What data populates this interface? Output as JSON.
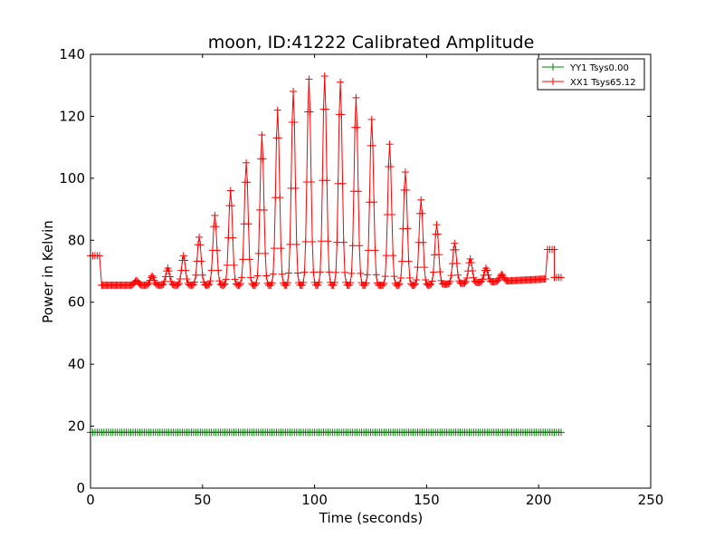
{
  "chart_data": {
    "type": "line",
    "title": "moon, ID:41222 Calibrated Amplitude",
    "xlabel": "Time (seconds)",
    "ylabel": "Power in Kelvin",
    "xlim": [
      0,
      250
    ],
    "ylim": [
      0,
      140
    ],
    "xticks": [
      0,
      50,
      100,
      150,
      200,
      250
    ],
    "yticks": [
      0,
      20,
      40,
      60,
      80,
      100,
      120,
      140
    ],
    "grid": false,
    "legend_position": "top-right",
    "legend": [
      {
        "label": "YY1 Tsys0.00",
        "color": "#008000"
      },
      {
        "label": "XX1 Tsys65.12",
        "color": "#ff0000"
      }
    ],
    "series": [
      {
        "name": "YY1 Tsys0.00",
        "color": "#008000",
        "marker": "+",
        "baseline": 18,
        "xmin": 0,
        "xmax": 210,
        "step": 1
      },
      {
        "name": "XX1 Tsys65.12",
        "color": "#ff0000",
        "marker": "+",
        "start_segment": {
          "x": [
            0,
            4
          ],
          "y": 75
        },
        "baseline_left": 65.5,
        "baseline_right": 67.5,
        "baseline_x": [
          5,
          203
        ],
        "bump_segment": {
          "x": [
            204,
            207
          ],
          "y": 77
        },
        "end_segment": {
          "x": [
            207,
            210
          ],
          "y": 68
        },
        "peaks": [
          {
            "x": 20.5,
            "y": 67
          },
          {
            "x": 27.5,
            "y": 68.5
          },
          {
            "x": 34.5,
            "y": 71
          },
          {
            "x": 41.5,
            "y": 75
          },
          {
            "x": 48.5,
            "y": 81
          },
          {
            "x": 55.5,
            "y": 88
          },
          {
            "x": 62.5,
            "y": 96
          },
          {
            "x": 69.5,
            "y": 105
          },
          {
            "x": 76.5,
            "y": 114
          },
          {
            "x": 83.5,
            "y": 122
          },
          {
            "x": 90.5,
            "y": 128
          },
          {
            "x": 97.5,
            "y": 132
          },
          {
            "x": 104.5,
            "y": 133
          },
          {
            "x": 111.5,
            "y": 131
          },
          {
            "x": 118.5,
            "y": 126
          },
          {
            "x": 125.5,
            "y": 119
          },
          {
            "x": 133.5,
            "y": 111
          },
          {
            "x": 140.5,
            "y": 102
          },
          {
            "x": 147.5,
            "y": 93
          },
          {
            "x": 154.5,
            "y": 85
          },
          {
            "x": 162.5,
            "y": 79
          },
          {
            "x": 169.5,
            "y": 74
          },
          {
            "x": 176.5,
            "y": 71
          },
          {
            "x": 183.5,
            "y": 69
          }
        ]
      }
    ]
  }
}
